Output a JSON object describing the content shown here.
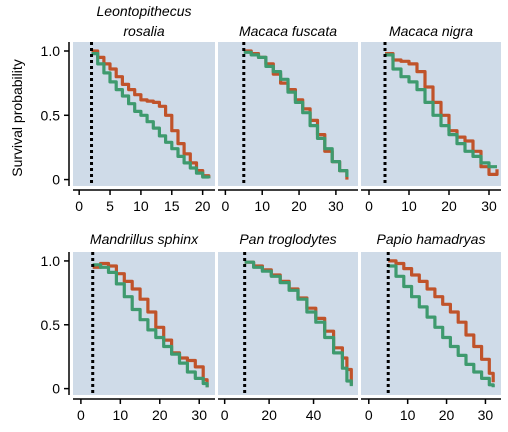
{
  "chart_data": {
    "type": "line",
    "ylabel": "Survival probability",
    "colors": {
      "series_a": "#c0532a",
      "series_b": "#3e9a6e",
      "background": "#cfdbe8"
    },
    "grid": false,
    "panels": [
      {
        "title_lines": [
          "Leontopithecus",
          "rosalia"
        ],
        "xlim": [
          -1,
          22
        ],
        "ylim": [
          -0.05,
          1.07
        ],
        "xticks": [
          0,
          5,
          10,
          15,
          20
        ],
        "xtick_labels": [
          "0",
          "5",
          "10",
          "15",
          "20"
        ],
        "yticks": [
          0,
          0.5,
          1.0
        ],
        "ytick_labels": [
          "0",
          "0.5",
          "1.0"
        ],
        "vline": 2,
        "series": [
          {
            "x": [
              2,
              3,
              4,
              5,
              6,
              7,
              8,
              9,
              10,
              11,
              12,
              13,
              14,
              15,
              16,
              17,
              18,
              19,
              20,
              21
            ],
            "y": [
              1.0,
              0.95,
              0.9,
              0.86,
              0.8,
              0.74,
              0.7,
              0.66,
              0.62,
              0.61,
              0.6,
              0.57,
              0.5,
              0.38,
              0.28,
              0.2,
              0.13,
              0.07,
              0.03,
              0.01
            ]
          },
          {
            "x": [
              2,
              3,
              4,
              5,
              6,
              7,
              8,
              9,
              10,
              11,
              12,
              13,
              14,
              15,
              16,
              17,
              18,
              19,
              20,
              21
            ],
            "y": [
              0.98,
              0.9,
              0.83,
              0.76,
              0.7,
              0.65,
              0.59,
              0.53,
              0.5,
              0.45,
              0.4,
              0.34,
              0.29,
              0.24,
              0.18,
              0.13,
              0.09,
              0.05,
              0.02,
              0.01
            ]
          }
        ]
      },
      {
        "title_lines": [
          "Macaca fuscata"
        ],
        "xlim": [
          -2,
          36
        ],
        "ylim": [
          -0.05,
          1.07
        ],
        "xticks": [
          0,
          10,
          20,
          30
        ],
        "xtick_labels": [
          "0",
          "10",
          "20",
          "30"
        ],
        "yticks": [
          0,
          0.5,
          1.0
        ],
        "ytick_labels": [
          "0",
          "0.5",
          "1.0"
        ],
        "vline": 5,
        "series": [
          {
            "x": [
              5,
              7,
              9,
              11,
              13,
              15,
              17,
              19,
              21,
              23,
              25,
              27,
              29,
              31,
              33
            ],
            "y": [
              1.0,
              0.98,
              0.95,
              0.9,
              0.82,
              0.75,
              0.7,
              0.62,
              0.55,
              0.46,
              0.35,
              0.22,
              0.14,
              0.07,
              0.0
            ]
          },
          {
            "x": [
              5,
              7,
              9,
              11,
              13,
              15,
              17,
              19,
              21,
              23,
              25,
              27,
              29,
              31,
              33
            ],
            "y": [
              0.99,
              0.97,
              0.95,
              0.88,
              0.84,
              0.78,
              0.68,
              0.6,
              0.52,
              0.42,
              0.32,
              0.24,
              0.14,
              0.07,
              0.02
            ]
          }
        ]
      },
      {
        "title_lines": [
          "Macaca nigra"
        ],
        "xlim": [
          -2,
          33
        ],
        "ylim": [
          -0.05,
          1.07
        ],
        "xticks": [
          0,
          10,
          20,
          30
        ],
        "xtick_labels": [
          "0",
          "10",
          "20",
          "30"
        ],
        "yticks": [
          0,
          0.5,
          1.0
        ],
        "ytick_labels": [
          "0",
          "0.5",
          "1.0"
        ],
        "vline": 4,
        "series": [
          {
            "x": [
              4,
              6,
              8,
              10,
              12,
              14,
              16,
              18,
              20,
              22,
              24,
              26,
              28,
              30,
              32
            ],
            "y": [
              0.98,
              0.93,
              0.92,
              0.9,
              0.84,
              0.72,
              0.6,
              0.5,
              0.38,
              0.33,
              0.3,
              0.22,
              0.1,
              0.04,
              0.08
            ]
          },
          {
            "x": [
              4,
              6,
              8,
              10,
              12,
              14,
              16,
              18,
              20,
              22,
              24,
              26,
              28,
              30,
              32
            ],
            "y": [
              0.97,
              0.86,
              0.8,
              0.76,
              0.7,
              0.6,
              0.5,
              0.42,
              0.35,
              0.28,
              0.22,
              0.18,
              0.13,
              0.1,
              0.1
            ]
          }
        ]
      },
      {
        "title_lines": [
          "Mandrillus sphinx"
        ],
        "xlim": [
          -2,
          34
        ],
        "ylim": [
          -0.05,
          1.07
        ],
        "xticks": [
          0,
          10,
          20,
          30
        ],
        "xtick_labels": [
          "0",
          "10",
          "20",
          "30"
        ],
        "yticks": [
          0,
          0.5,
          1.0
        ],
        "ytick_labels": [
          "0",
          "0.5",
          "1.0"
        ],
        "vline": 3,
        "series": [
          {
            "x": [
              3,
              5,
              7,
              9,
              11,
              13,
              15,
              17,
              19,
              21,
              23,
              25,
              27,
              29,
              31,
              32
            ],
            "y": [
              0.95,
              0.98,
              0.96,
              0.9,
              0.84,
              0.78,
              0.7,
              0.6,
              0.48,
              0.38,
              0.28,
              0.24,
              0.22,
              0.17,
              0.07,
              0.01
            ]
          },
          {
            "x": [
              3,
              5,
              7,
              9,
              11,
              13,
              15,
              17,
              19,
              21,
              23,
              25,
              27,
              29,
              31,
              32
            ],
            "y": [
              0.97,
              0.95,
              0.91,
              0.82,
              0.72,
              0.62,
              0.54,
              0.46,
              0.4,
              0.33,
              0.27,
              0.2,
              0.13,
              0.08,
              0.04,
              0.01
            ]
          }
        ]
      },
      {
        "title_lines": [
          "Pan troglodytes"
        ],
        "xlim": [
          -3,
          60
        ],
        "ylim": [
          -0.05,
          1.07
        ],
        "xticks": [
          0,
          20,
          40
        ],
        "xtick_labels": [
          "0",
          "20",
          "40"
        ],
        "yticks": [
          0,
          0.5,
          1.0
        ],
        "ytick_labels": [
          "0",
          "0.5",
          "1.0"
        ],
        "vline": 9,
        "series": [
          {
            "x": [
              9,
              13,
              17,
              21,
              25,
              29,
              33,
              37,
              41,
              45,
              49,
              53,
              55,
              57
            ],
            "y": [
              0.99,
              0.96,
              0.93,
              0.89,
              0.84,
              0.78,
              0.71,
              0.63,
              0.55,
              0.45,
              0.32,
              0.24,
              0.15,
              0.03
            ]
          },
          {
            "x": [
              9,
              13,
              17,
              21,
              25,
              29,
              33,
              37,
              41,
              45,
              49,
              53,
              55,
              57
            ],
            "y": [
              0.99,
              0.95,
              0.92,
              0.88,
              0.83,
              0.77,
              0.7,
              0.6,
              0.52,
              0.4,
              0.28,
              0.16,
              0.06,
              0.02
            ]
          }
        ]
      },
      {
        "title_lines": [
          "Papio hamadryas"
        ],
        "xlim": [
          -2,
          34
        ],
        "ylim": [
          -0.05,
          1.07
        ],
        "xticks": [
          0,
          10,
          20,
          30
        ],
        "xtick_labels": [
          "0",
          "10",
          "20",
          "30"
        ],
        "yticks": [
          0,
          0.5,
          1.0
        ],
        "ytick_labels": [
          "0",
          "0.5",
          "1.0"
        ],
        "vline": 5,
        "series": [
          {
            "x": [
              5,
              7,
              9,
              11,
              13,
              15,
              17,
              19,
              21,
              23,
              25,
              27,
              29,
              31,
              32
            ],
            "y": [
              1.0,
              0.98,
              0.94,
              0.89,
              0.84,
              0.78,
              0.72,
              0.66,
              0.6,
              0.52,
              0.42,
              0.33,
              0.23,
              0.12,
              0.05
            ]
          },
          {
            "x": [
              5,
              7,
              9,
              11,
              13,
              15,
              17,
              19,
              21,
              23,
              25,
              27,
              29,
              31,
              32
            ],
            "y": [
              0.96,
              0.88,
              0.8,
              0.72,
              0.64,
              0.56,
              0.48,
              0.4,
              0.33,
              0.26,
              0.19,
              0.13,
              0.08,
              0.03,
              0.01
            ]
          }
        ]
      }
    ]
  }
}
